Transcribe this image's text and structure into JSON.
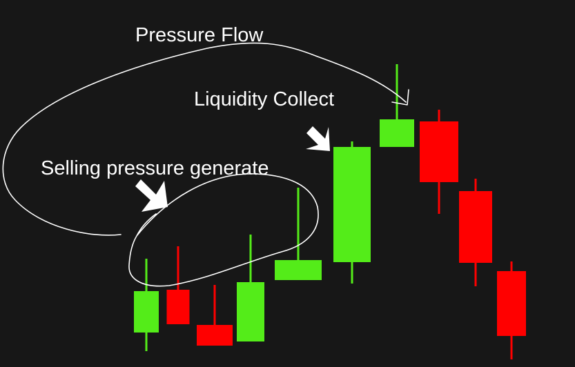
{
  "chart_data": {
    "type": "candlestick",
    "title": "",
    "xlabel": "",
    "ylabel": "",
    "axes_visible": false,
    "grid": false,
    "colors": {
      "background": "#171717",
      "bullish": "#54ec19",
      "bearish": "#ff0000",
      "annotation": "#ffffff"
    },
    "candles": [
      {
        "dir": "bull",
        "open": 50,
        "close": 110,
        "high": 157,
        "low": 23
      },
      {
        "dir": "bear",
        "open": 112,
        "close": 62,
        "high": 175,
        "low": 62
      },
      {
        "dir": "bear",
        "open": 61,
        "close": 31,
        "high": 119,
        "low": 31
      },
      {
        "dir": "bull",
        "open": 37,
        "close": 123,
        "high": 192,
        "low": 37
      },
      {
        "dir": "bull",
        "open": 126,
        "close": 155,
        "high": 260,
        "low": 126
      },
      {
        "dir": "bull",
        "open": 152,
        "close": 319,
        "high": 327,
        "low": 121
      },
      {
        "dir": "bull",
        "open": 319,
        "close": 359,
        "high": 439,
        "low": 319
      },
      {
        "dir": "bear",
        "open": 356,
        "close": 268,
        "high": 373,
        "low": 222
      },
      {
        "dir": "bear",
        "open": 255,
        "close": 151,
        "high": 273,
        "low": 117
      },
      {
        "dir": "bear",
        "open": 139,
        "close": 45,
        "high": 153,
        "low": 11
      }
    ]
  },
  "annotations": {
    "pressure_flow": "Pressure Flow",
    "liquidity_collect": "Liquidity Collect",
    "selling_pressure": "Selling pressure generate"
  }
}
